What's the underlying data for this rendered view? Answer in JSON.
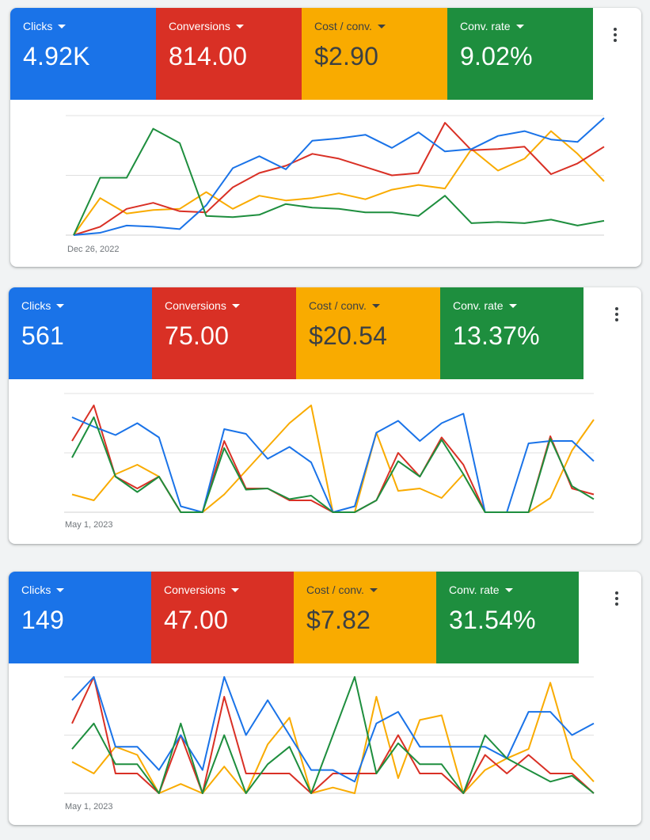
{
  "colors": {
    "clicks": "#1a73e8",
    "conversions": "#d93025",
    "cost_per_conv": "#f9ab00",
    "conv_rate": "#1e8e3e",
    "tile_text_light": "#ffffff",
    "tile_text_dark": "#3c4043",
    "gridline": "#e0e0e0"
  },
  "icons": {
    "menu": "more-vert-icon",
    "dropdown": "arrow-drop-down-icon"
  },
  "cards": [
    {
      "metrics": [
        {
          "key": "clicks",
          "label": "Clicks",
          "value": "4.92K"
        },
        {
          "key": "conversions",
          "label": "Conversions",
          "value": "814.00"
        },
        {
          "key": "cost_per_conv",
          "label": "Cost / conv.",
          "value": "$2.90"
        },
        {
          "key": "conv_rate",
          "label": "Conv. rate",
          "value": "9.02%"
        }
      ],
      "date_label": "Dec 26, 2022",
      "chart_data": {
        "type": "line",
        "ylim": [
          0,
          100
        ],
        "x_count": 21,
        "series": [
          {
            "key": "clicks",
            "values": [
              0,
              2,
              8,
              7,
              5,
              25,
              56,
              66,
              55,
              79,
              81,
              84,
              73,
              86,
              70,
              72,
              83,
              87,
              80,
              78,
              98
            ]
          },
          {
            "key": "conversions",
            "values": [
              0,
              7,
              22,
              27,
              20,
              19,
              40,
              52,
              58,
              68,
              64,
              57,
              50,
              52,
              94,
              71,
              72,
              74,
              51,
              60,
              74
            ]
          },
          {
            "key": "cost_per_conv",
            "values": [
              0,
              31,
              18,
              21,
              22,
              36,
              22,
              33,
              29,
              31,
              35,
              30,
              38,
              42,
              39,
              72,
              54,
              64,
              87,
              68,
              45
            ]
          },
          {
            "key": "conv_rate",
            "values": [
              0,
              48,
              48,
              89,
              77,
              16,
              15,
              17,
              26,
              23,
              22,
              19,
              19,
              16,
              33,
              10,
              11,
              10,
              13,
              8,
              12
            ]
          }
        ]
      }
    },
    {
      "metrics": [
        {
          "key": "clicks",
          "label": "Clicks",
          "value": "561"
        },
        {
          "key": "conversions",
          "label": "Conversions",
          "value": "75.00"
        },
        {
          "key": "cost_per_conv",
          "label": "Cost / conv.",
          "value": "$20.54"
        },
        {
          "key": "conv_rate",
          "label": "Conv. rate",
          "value": "13.37%"
        }
      ],
      "date_label": "May 1, 2023",
      "chart_data": {
        "type": "line",
        "ylim": [
          0,
          100
        ],
        "x_count": 25,
        "series": [
          {
            "key": "clicks",
            "values": [
              80,
              72,
              65,
              75,
              63,
              5,
              0,
              70,
              66,
              45,
              55,
              42,
              0,
              5,
              67,
              77,
              60,
              75,
              83,
              0,
              0,
              58,
              60,
              60,
              43
            ]
          },
          {
            "key": "conversions",
            "values": [
              60,
              90,
              30,
              20,
              30,
              0,
              0,
              60,
              20,
              20,
              10,
              10,
              0,
              0,
              10,
              50,
              30,
              63,
              40,
              0,
              0,
              0,
              64,
              20,
              15
            ]
          },
          {
            "key": "cost_per_conv",
            "values": [
              15,
              10,
              32,
              40,
              30,
              0,
              0,
              15,
              35,
              55,
              75,
              90,
              0,
              0,
              67,
              18,
              20,
              12,
              32,
              0,
              0,
              0,
              12,
              52,
              78
            ]
          },
          {
            "key": "conv_rate",
            "values": [
              46,
              80,
              30,
              17,
              30,
              0,
              0,
              54,
              19,
              20,
              11,
              14,
              0,
              0,
              10,
              43,
              30,
              61,
              32,
              0,
              0,
              0,
              62,
              22,
              11
            ]
          }
        ]
      }
    },
    {
      "metrics": [
        {
          "key": "clicks",
          "label": "Clicks",
          "value": "149"
        },
        {
          "key": "conversions",
          "label": "Conversions",
          "value": "47.00"
        },
        {
          "key": "cost_per_conv",
          "label": "Cost / conv.",
          "value": "$7.82"
        },
        {
          "key": "conv_rate",
          "label": "Conv. rate",
          "value": "31.54%"
        }
      ],
      "date_label": "May 1, 2023",
      "chart_data": {
        "type": "line",
        "ylim": [
          0,
          100
        ],
        "x_count": 25,
        "series": [
          {
            "key": "clicks",
            "values": [
              80,
              100,
              40,
              40,
              20,
              50,
              20,
              100,
              50,
              80,
              50,
              20,
              20,
              10,
              60,
              70,
              40,
              40,
              40,
              40,
              30,
              70,
              70,
              50,
              60
            ]
          },
          {
            "key": "conversions",
            "values": [
              60,
              100,
              17,
              17,
              0,
              50,
              0,
              83,
              17,
              17,
              17,
              0,
              17,
              17,
              17,
              50,
              17,
              17,
              0,
              33,
              17,
              33,
              17,
              17,
              0
            ]
          },
          {
            "key": "cost_per_conv",
            "values": [
              27,
              17,
              40,
              33,
              0,
              8,
              0,
              23,
              0,
              42,
              65,
              0,
              5,
              0,
              83,
              13,
              63,
              67,
              0,
              20,
              30,
              38,
              95,
              30,
              10
            ]
          },
          {
            "key": "conv_rate",
            "values": [
              38,
              60,
              25,
              25,
              0,
              60,
              0,
              50,
              0,
              25,
              40,
              0,
              50,
              100,
              17,
              43,
              25,
              25,
              0,
              50,
              30,
              20,
              10,
              15,
              0
            ]
          }
        ]
      }
    }
  ]
}
